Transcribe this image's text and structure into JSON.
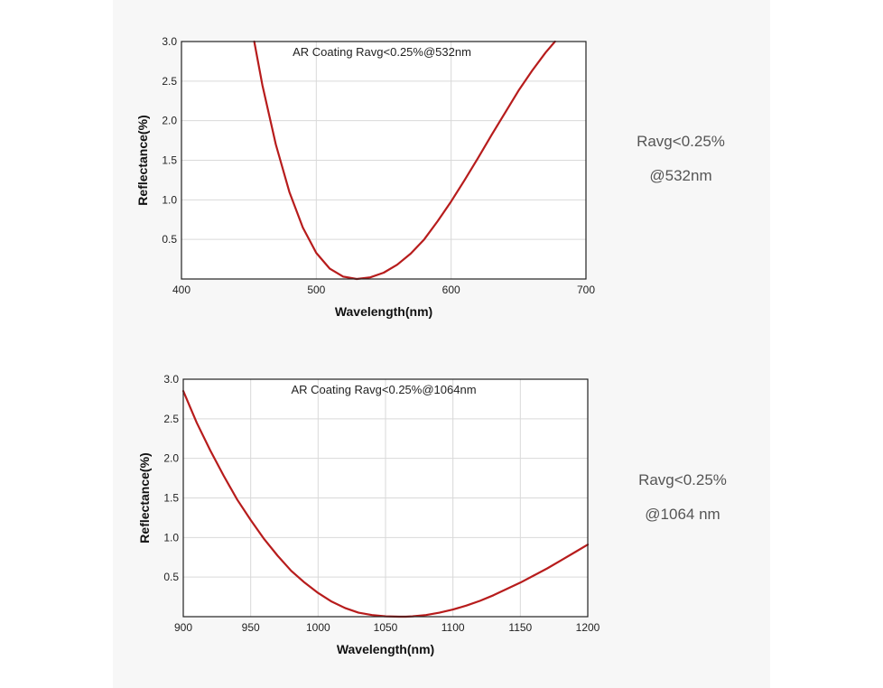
{
  "colors": {
    "curve": "#b71c1c",
    "grid": "#d9d9d9",
    "frame": "#222222"
  },
  "notes": [
    {
      "line1": "Ravg<0.25%",
      "line2": "@532nm"
    },
    {
      "line1": "Ravg<0.25%",
      "line2": "@1064 nm"
    }
  ],
  "chart_data": [
    {
      "type": "line",
      "title": "AR Coating Ravg<0.25%@532nm",
      "xlabel": "Wavelength(nm)",
      "ylabel": "Reflectance(%)",
      "xlim": [
        400,
        700
      ],
      "ylim": [
        0,
        3.0
      ],
      "xticks": [
        400,
        500,
        600,
        700
      ],
      "yticks": [
        0.5,
        1.0,
        1.5,
        2.0,
        2.5,
        3.0
      ],
      "ytick_labels": [
        "0.5",
        "1.0",
        "1.5",
        "2.0",
        "2.5",
        "3.0"
      ],
      "grid": true,
      "series": [
        {
          "x": [
            454,
            460,
            470,
            480,
            490,
            500,
            510,
            520,
            530,
            540,
            550,
            560,
            570,
            580,
            590,
            600,
            610,
            620,
            630,
            640,
            650,
            660,
            670,
            677
          ],
          "y": [
            3.0,
            2.45,
            1.7,
            1.1,
            0.65,
            0.33,
            0.13,
            0.03,
            0.0,
            0.02,
            0.08,
            0.18,
            0.32,
            0.5,
            0.73,
            0.98,
            1.25,
            1.53,
            1.82,
            2.1,
            2.38,
            2.63,
            2.86,
            3.0
          ]
        }
      ]
    },
    {
      "type": "line",
      "title": "AR Coating Ravg<0.25%@1064nm",
      "xlabel": "Wavelength(nm)",
      "ylabel": "Reflectance(%)",
      "xlim": [
        900,
        1200
      ],
      "ylim": [
        0,
        3.0
      ],
      "xticks": [
        900,
        950,
        1000,
        1050,
        1100,
        1150,
        1200
      ],
      "yticks": [
        0.5,
        1.0,
        1.5,
        2.0,
        2.5,
        3.0
      ],
      "ytick_labels": [
        "0.5",
        "1.0",
        "1.5",
        "2.0",
        "2.5",
        "3.0"
      ],
      "grid": true,
      "series": [
        {
          "x": [
            900,
            910,
            920,
            930,
            940,
            950,
            960,
            970,
            980,
            990,
            1000,
            1010,
            1020,
            1030,
            1040,
            1050,
            1060,
            1065,
            1070,
            1080,
            1090,
            1100,
            1110,
            1120,
            1130,
            1140,
            1150,
            1160,
            1170,
            1180,
            1190,
            1200
          ],
          "y": [
            2.85,
            2.45,
            2.1,
            1.78,
            1.48,
            1.22,
            0.98,
            0.77,
            0.58,
            0.43,
            0.3,
            0.19,
            0.11,
            0.05,
            0.02,
            0.005,
            0.0,
            0.0,
            0.005,
            0.02,
            0.05,
            0.09,
            0.14,
            0.2,
            0.27,
            0.35,
            0.43,
            0.52,
            0.61,
            0.71,
            0.81,
            0.91
          ]
        }
      ]
    }
  ]
}
